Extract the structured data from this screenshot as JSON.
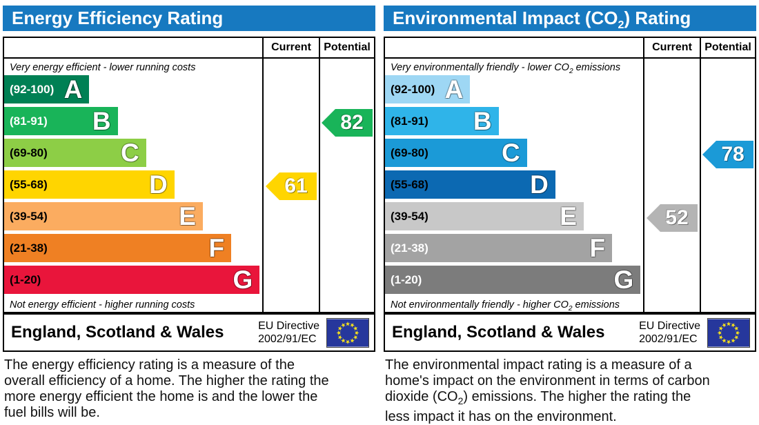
{
  "colors": {
    "header_blue": "#1779c0",
    "eu_flag_blue": "#26379c",
    "eu_star_yellow": "#f6e11c",
    "border": "#000000"
  },
  "ratings": [
    {
      "title_part1": "Energy Efficiency Rating",
      "title_sub": "",
      "title_part2": "",
      "col_current": "Current",
      "col_potential": "Potential",
      "note_top_part1": "Very energy efficient - lower running costs",
      "note_top_sub": "",
      "note_top_part2": "",
      "note_bottom_part1": "Not energy efficient - higher running costs",
      "note_bottom_sub": "",
      "note_bottom_part2": "",
      "bands": [
        {
          "letter": "A",
          "range": "(92-100)",
          "color": "#008054",
          "label_color": "#ffffff",
          "width_pct": 33
        },
        {
          "letter": "B",
          "range": "(81-91)",
          "color": "#19b459",
          "label_color": "#ffffff",
          "width_pct": 44
        },
        {
          "letter": "C",
          "range": "(69-80)",
          "color": "#8dce46",
          "label_color": "#000000",
          "width_pct": 55
        },
        {
          "letter": "D",
          "range": "(55-68)",
          "color": "#ffd500",
          "label_color": "#000000",
          "width_pct": 66
        },
        {
          "letter": "E",
          "range": "(39-54)",
          "color": "#fbac60",
          "label_color": "#000000",
          "width_pct": 77
        },
        {
          "letter": "F",
          "range": "(21-38)",
          "color": "#ef8023",
          "label_color": "#000000",
          "width_pct": 88
        },
        {
          "letter": "G",
          "range": "(1-20)",
          "color": "#e9153b",
          "label_color": "#000000",
          "width_pct": 99
        }
      ],
      "current": {
        "value": "61",
        "band_index": 3,
        "color": "#ffd500"
      },
      "potential": {
        "value": "82",
        "band_index": 1,
        "color": "#19b459"
      },
      "footer_region": "England, Scotland & Wales",
      "footer_directive_line1": "EU Directive",
      "footer_directive_line2": "2002/91/EC",
      "description_part1": "The energy efficiency rating is a measure of the overall efficiency of a home. The higher the rating the more energy efficient the home is and the lower the fuel bills will be.",
      "description_sub": "",
      "description_part2": ""
    },
    {
      "title_part1": "Environmental Impact (CO",
      "title_sub": "2",
      "title_part2": ") Rating",
      "col_current": "Current",
      "col_potential": "Potential",
      "note_top_part1": "Very environmentally friendly - lower CO",
      "note_top_sub": "2",
      "note_top_part2": " emissions",
      "note_bottom_part1": "Not environmentally friendly - higher CO",
      "note_bottom_sub": "2",
      "note_bottom_part2": " emissions",
      "bands": [
        {
          "letter": "A",
          "range": "(92-100)",
          "color": "#9ed7f4",
          "label_color": "#000000",
          "width_pct": 33
        },
        {
          "letter": "B",
          "range": "(81-91)",
          "color": "#2fb4e9",
          "label_color": "#000000",
          "width_pct": 44
        },
        {
          "letter": "C",
          "range": "(69-80)",
          "color": "#1b9ad7",
          "label_color": "#000000",
          "width_pct": 55
        },
        {
          "letter": "D",
          "range": "(55-68)",
          "color": "#0c69b2",
          "label_color": "#000000",
          "width_pct": 66
        },
        {
          "letter": "E",
          "range": "(39-54)",
          "color": "#c8c8c8",
          "label_color": "#000000",
          "width_pct": 77
        },
        {
          "letter": "F",
          "range": "(21-38)",
          "color": "#a3a3a3",
          "label_color": "#ffffff",
          "width_pct": 88
        },
        {
          "letter": "G",
          "range": "(1-20)",
          "color": "#7c7c7c",
          "label_color": "#ffffff",
          "width_pct": 99
        }
      ],
      "current": {
        "value": "52",
        "band_index": 4,
        "color": "#b4b4b4"
      },
      "potential": {
        "value": "78",
        "band_index": 2,
        "color": "#1b9ad7"
      },
      "footer_region": "England, Scotland & Wales",
      "footer_directive_line1": "EU Directive",
      "footer_directive_line2": "2002/91/EC",
      "description_part1": "The environmental impact rating is a measure of a home's impact on the environment in terms of carbon dioxide (CO",
      "description_sub": "2",
      "description_part2": ") emissions. The higher the rating the less impact it has on the environment."
    }
  ],
  "chart_data": [
    {
      "type": "bar",
      "title": "Energy Efficiency Rating",
      "categories": [
        "A (92-100)",
        "B (81-91)",
        "C (69-80)",
        "D (55-68)",
        "E (39-54)",
        "F (21-38)",
        "G (1-20)"
      ],
      "band_colors": [
        "#008054",
        "#19b459",
        "#8dce46",
        "#ffd500",
        "#fbac60",
        "#ef8023",
        "#e9153b"
      ],
      "series": [
        {
          "name": "Current",
          "value": 61,
          "band": "D",
          "color": "#ffd500"
        },
        {
          "name": "Potential",
          "value": 82,
          "band": "B",
          "color": "#19b459"
        }
      ],
      "value_range": [
        1,
        100
      ],
      "top_note": "Very energy efficient - lower running costs",
      "bottom_note": "Not energy efficient - higher running costs",
      "footer": "England, Scotland & Wales | EU Directive 2002/91/EC"
    },
    {
      "type": "bar",
      "title": "Environmental Impact (CO2) Rating",
      "categories": [
        "A (92-100)",
        "B (81-91)",
        "C (69-80)",
        "D (55-68)",
        "E (39-54)",
        "F (21-38)",
        "G (1-20)"
      ],
      "band_colors": [
        "#9ed7f4",
        "#2fb4e9",
        "#1b9ad7",
        "#0c69b2",
        "#c8c8c8",
        "#a3a3a3",
        "#7c7c7c"
      ],
      "series": [
        {
          "name": "Current",
          "value": 52,
          "band": "E",
          "color": "#b4b4b4"
        },
        {
          "name": "Potential",
          "value": 78,
          "band": "C",
          "color": "#1b9ad7"
        }
      ],
      "value_range": [
        1,
        100
      ],
      "top_note": "Very environmentally friendly - lower CO2 emissions",
      "bottom_note": "Not environmentally friendly - higher CO2 emissions",
      "footer": "England, Scotland & Wales | EU Directive 2002/91/EC"
    }
  ]
}
